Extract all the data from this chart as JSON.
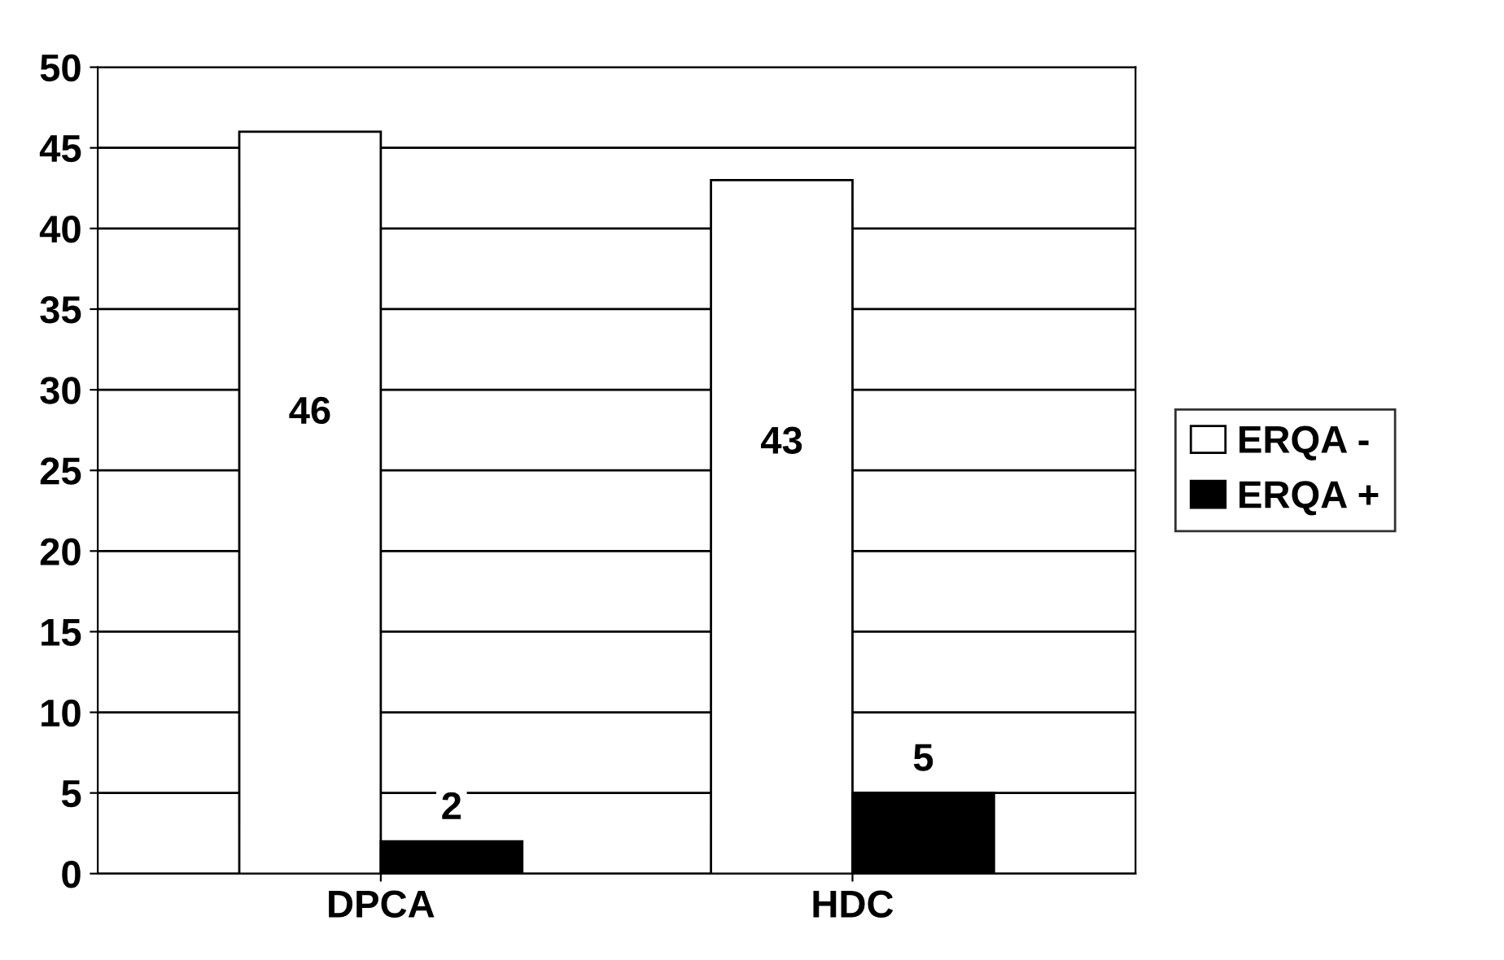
{
  "chart_data": {
    "type": "bar",
    "categories": [
      "DPCA",
      "HDC"
    ],
    "series": [
      {
        "name": "ERQA -",
        "color": "#ffffff",
        "values": [
          46,
          43
        ]
      },
      {
        "name": "ERQA +",
        "color": "#000000",
        "values": [
          2,
          5
        ]
      }
    ],
    "ylim": [
      0,
      50
    ],
    "yticks": [
      0,
      5,
      10,
      15,
      20,
      25,
      30,
      35,
      40,
      45,
      50
    ],
    "grid": "y",
    "legend": "right",
    "data_labels": true
  }
}
